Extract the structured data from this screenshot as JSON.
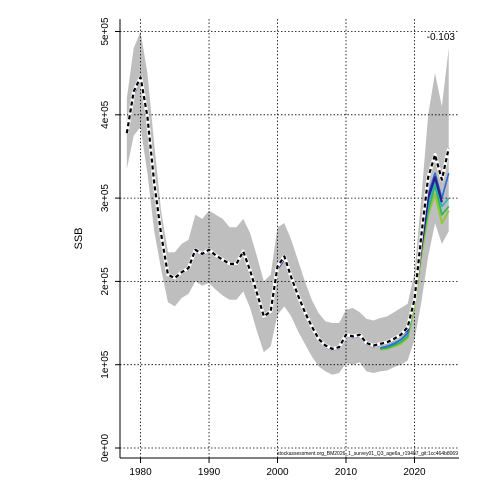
{
  "chart_data": {
    "type": "line",
    "title": "",
    "xlabel": "",
    "ylabel": "SSB",
    "xlim": [
      1977,
      2026.5
    ],
    "ylim": [
      -12000,
      515000
    ],
    "x_ticks": [
      1980,
      1990,
      2000,
      2010,
      2020
    ],
    "y_ticks": [
      0,
      100000,
      200000,
      300000,
      400000,
      500000
    ],
    "y_tick_labels": [
      "0e+00",
      "1e+05",
      "2e+05",
      "3e+05",
      "4e+05",
      "5e+05"
    ],
    "grid": true,
    "annotation": "-0.103",
    "footnote": "stockassessment.org_BM2026_1_survey01_Q3_age6a_r19487_git:1cc464b8069",
    "colors": {
      "band": "#bebebe",
      "base": "#2a1f8c",
      "retro": [
        "#2a6ad6",
        "#2bb2c2",
        "#33b55a",
        "#8fc93a"
      ],
      "estimate": "#000000"
    },
    "band": {
      "x": [
        1978,
        1979,
        1980,
        1981,
        1982,
        1983,
        1984,
        1985,
        1986,
        1987,
        1988,
        1989,
        1990,
        1991,
        1992,
        1993,
        1994,
        1995,
        1996,
        1997,
        1998,
        1999,
        2000,
        2001,
        2002,
        2003,
        2004,
        2005,
        2006,
        2007,
        2008,
        2009,
        2010,
        2011,
        2012,
        2013,
        2014,
        2015,
        2016,
        2017,
        2018,
        2019,
        2020,
        2021,
        2022,
        2023,
        2024,
        2025
      ],
      "lower": [
        335000,
        375000,
        385000,
        330000,
        260000,
        215000,
        175000,
        170000,
        180000,
        185000,
        200000,
        195000,
        198000,
        190000,
        183000,
        178000,
        178000,
        188000,
        168000,
        140000,
        115000,
        122000,
        160000,
        170000,
        158000,
        140000,
        125000,
        110000,
        98000,
        92000,
        88000,
        90000,
        102000,
        100000,
        103000,
        92000,
        90000,
        92000,
        93000,
        97000,
        100000,
        105000,
        130000,
        175000,
        230000,
        270000,
        245000,
        260000
      ],
      "upper": [
        420000,
        480000,
        500000,
        450000,
        365000,
        285000,
        235000,
        235000,
        245000,
        250000,
        280000,
        275000,
        285000,
        280000,
        275000,
        265000,
        265000,
        275000,
        258000,
        230000,
        200000,
        208000,
        265000,
        270000,
        250000,
        225000,
        200000,
        178000,
        162000,
        152000,
        150000,
        150000,
        166000,
        168000,
        163000,
        155000,
        153000,
        156000,
        158000,
        163000,
        168000,
        173000,
        210000,
        300000,
        400000,
        450000,
        410000,
        480000
      ]
    },
    "series": [
      {
        "x": [
          2015,
          2016,
          2017,
          2018,
          2019,
          2020,
          2021,
          2022,
          2023,
          2024,
          2025
        ],
        "values": [
          120000,
          122000,
          125000,
          130000,
          138000,
          185000,
          250000,
          305000,
          330000,
          300000,
          330000
        ]
      },
      {
        "x": [
          2015,
          2016,
          2017,
          2018,
          2019,
          2020,
          2021,
          2022,
          2023,
          2024,
          2025
        ],
        "values": [
          120000,
          122000,
          126000,
          130000,
          137000,
          180000,
          248000,
          290000,
          320000,
          290000,
          300000
        ]
      },
      {
        "x": [
          2015,
          2016,
          2017,
          2018,
          2019,
          2020,
          2021,
          2022,
          2023,
          2024,
          2025
        ],
        "values": [
          119000,
          120000,
          123000,
          127000,
          134000,
          175000,
          240000,
          285000,
          315000,
          280000,
          290000
        ]
      },
      {
        "x": [
          2015,
          2016,
          2017,
          2018,
          2019,
          2020,
          2021,
          2022,
          2023,
          2024,
          2025
        ],
        "values": [
          118000,
          119000,
          122000,
          125000,
          132000,
          170000,
          230000,
          280000,
          305000,
          270000,
          285000
        ]
      },
      {
        "x": [
          1978,
          1979,
          1980,
          1981,
          1982,
          1983,
          1984,
          1985,
          1986,
          1987,
          1988,
          1989,
          1990,
          1991,
          1992,
          1993,
          1994,
          1995,
          1996,
          1997,
          1998,
          1999,
          2000,
          2001,
          2002,
          2003,
          2004,
          2005,
          2006,
          2007,
          2008,
          2009,
          2010,
          2011,
          2012,
          2013,
          2014,
          2015,
          2016,
          2017,
          2018,
          2019,
          2020,
          2021,
          2022,
          2023,
          2024
        ],
        "values": [
          378000,
          425000,
          443000,
          395000,
          315000,
          255000,
          207000,
          203000,
          210000,
          215000,
          237000,
          232000,
          237000,
          230000,
          225000,
          220000,
          220000,
          235000,
          212000,
          185000,
          157000,
          163000,
          215000,
          227000,
          204000,
          182000,
          162000,
          145000,
          130000,
          122000,
          118000,
          120000,
          135000,
          133000,
          135000,
          125000,
          122000,
          124000,
          126000,
          130000,
          135000,
          142000,
          175000,
          240000,
          300000,
          325000,
          295000
        ]
      },
      {
        "x": [
          1978,
          1979,
          1980,
          1981,
          1982,
          1983,
          1984,
          1985,
          1986,
          1987,
          1988,
          1989,
          1990,
          1991,
          1992,
          1993,
          1994,
          1995,
          1996,
          1997,
          1998,
          1999,
          2000,
          2001,
          2002,
          2003,
          2004,
          2005,
          2006,
          2007,
          2008,
          2009,
          2010,
          2011,
          2012,
          2013,
          2014,
          2015,
          2016,
          2017,
          2018,
          2019,
          2020,
          2021,
          2022,
          2023,
          2024,
          2025
        ],
        "values": [
          378000,
          428000,
          445000,
          398000,
          318000,
          257000,
          208000,
          204000,
          211000,
          216000,
          238000,
          233000,
          238000,
          231000,
          226000,
          221000,
          221000,
          236000,
          213000,
          186000,
          158000,
          164000,
          218000,
          230000,
          205000,
          183000,
          163000,
          146000,
          131000,
          123000,
          119000,
          121000,
          136000,
          134000,
          136000,
          126000,
          123000,
          125000,
          127000,
          131000,
          136000,
          145000,
          178000,
          255000,
          325000,
          352000,
          322000,
          360000
        ]
      }
    ]
  }
}
